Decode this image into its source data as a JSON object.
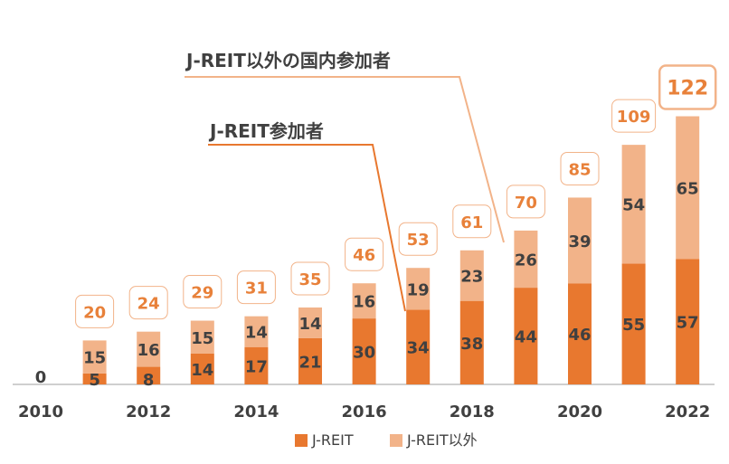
{
  "chart_data": {
    "type": "bar",
    "stacked": true,
    "categories": [
      "2010",
      "2011",
      "2012",
      "2013",
      "2014",
      "2015",
      "2016",
      "2017",
      "2018",
      "2019",
      "2020",
      "2021",
      "2022"
    ],
    "x_tick_labels": [
      "2010",
      "2012",
      "2014",
      "2016",
      "2018",
      "2020",
      "2022"
    ],
    "series": [
      {
        "name": "J-REIT",
        "color": "#E8782F",
        "values": [
          0,
          5,
          8,
          14,
          17,
          21,
          30,
          34,
          38,
          44,
          46,
          55,
          57
        ]
      },
      {
        "name": "J-REIT以外",
        "color": "#F2B389",
        "values": [
          0,
          15,
          16,
          15,
          14,
          14,
          16,
          19,
          23,
          26,
          39,
          54,
          65
        ]
      }
    ],
    "totals": [
      0,
      20,
      24,
      29,
      31,
      35,
      46,
      53,
      61,
      70,
      85,
      109,
      122
    ],
    "ylim": [
      0,
      130
    ],
    "grid": false,
    "legend": "bottom",
    "annotations": [
      {
        "text": "J-REIT以外の国内参加者",
        "target_category": "2019"
      },
      {
        "text": "J-REIT参加者",
        "target_category": "2017"
      }
    ]
  }
}
